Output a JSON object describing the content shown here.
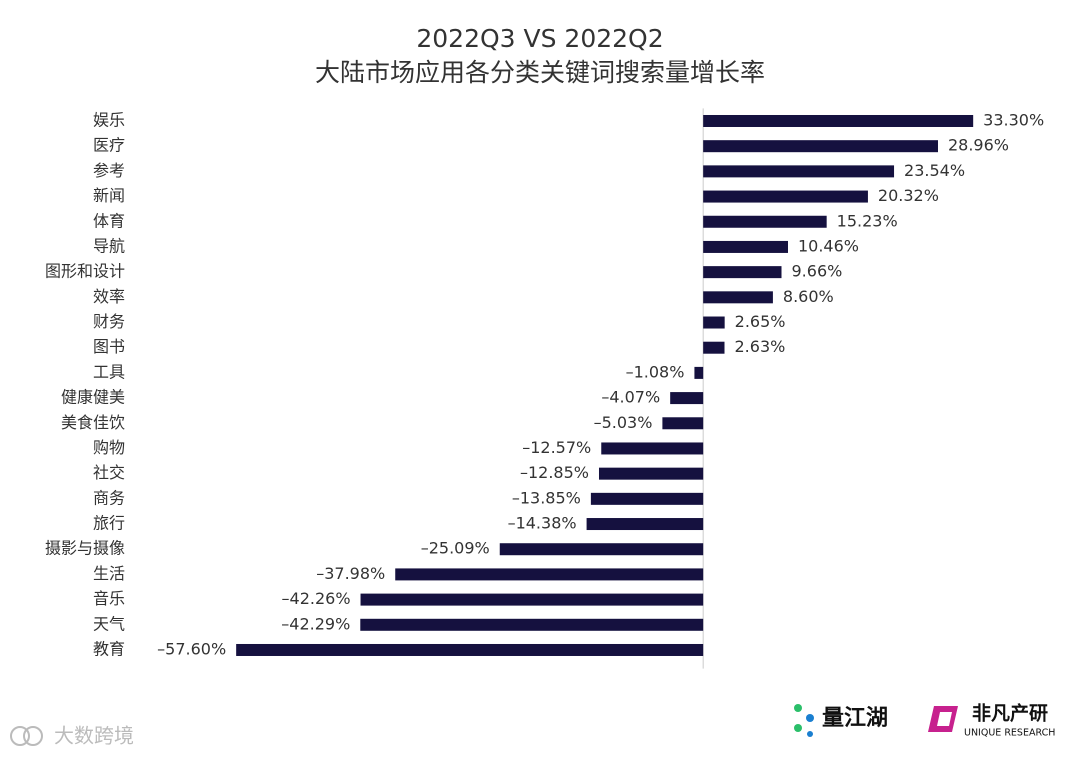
{
  "chart_data": {
    "type": "hbar",
    "title": "2022Q3 VS 2022Q2",
    "subtitle": "大陆市场应用各分类关键词搜索量增长率",
    "categories": [
      "娱乐",
      "医疗",
      "参考",
      "新闻",
      "体育",
      "导航",
      "图形和设计",
      "效率",
      "财务",
      "图书",
      "工具",
      "健康健美",
      "美食佳饮",
      "购物",
      "社交",
      "商务",
      "旅行",
      "摄影与摄像",
      "生活",
      "音乐",
      "天气",
      "教育"
    ],
    "values": [
      33.3,
      28.96,
      23.54,
      20.32,
      15.23,
      10.46,
      9.66,
      8.6,
      2.65,
      2.63,
      -1.08,
      -4.07,
      -5.03,
      -12.57,
      -12.85,
      -13.85,
      -14.38,
      -25.09,
      -37.98,
      -42.26,
      -42.29,
      -57.6
    ],
    "value_labels": [
      "33.30%",
      "28.96%",
      "23.54%",
      "20.32%",
      "15.23%",
      "10.46%",
      "9.66%",
      "8.60%",
      "2.65%",
      "2.63%",
      "–1.08%",
      "–4.07%",
      "–5.03%",
      "–12.57%",
      "–12.85%",
      "–13.85%",
      "–14.38%",
      "–25.09%",
      "–37.98%",
      "–42.26%",
      "–42.29%",
      "–57.60%"
    ],
    "color": "#15113f",
    "xlim": [
      -60,
      40
    ]
  },
  "footer": {
    "watermark": "大数跨境",
    "logo_left": "量江湖",
    "logo_right": "非凡产研",
    "logo_right_sub": "UNIQUE RESEARCH"
  }
}
